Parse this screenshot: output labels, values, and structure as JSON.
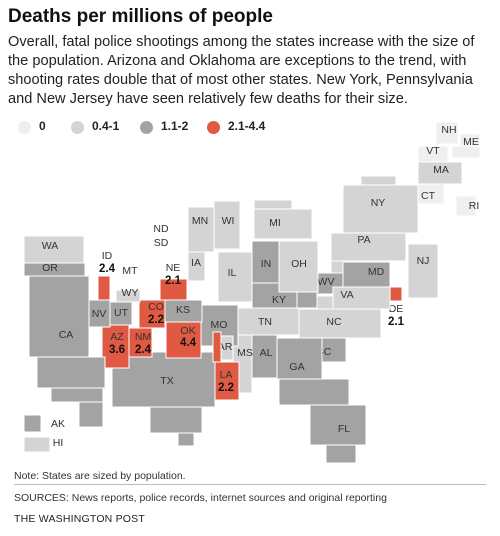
{
  "title": "Deaths per millions of people",
  "subtitle": "Overall, fatal police shootings among the states increase with the size of the population. Arizona and Oklahoma are exceptions to the trend, with shooting rates double that of most other states. New York, Pennsylvania and New Jersey have seen relatively few deaths for their size.",
  "colors": {
    "c0": "#efefef",
    "c1": "#d4d4d4",
    "c2": "#a3a3a3",
    "c3": "#e05a43"
  },
  "legend": [
    {
      "label": "0",
      "cls": "c0"
    },
    {
      "label": "0.4-1",
      "cls": "c1"
    },
    {
      "label": "1.1-2",
      "cls": "c2"
    },
    {
      "label": "2.1-4.4",
      "cls": "c3"
    }
  ],
  "states": [
    {
      "abbr": "ME",
      "cls": "c0"
    },
    {
      "abbr": "NH",
      "cls": "c0"
    },
    {
      "abbr": "VT",
      "cls": "c0"
    },
    {
      "abbr": "MA",
      "cls": "c1"
    },
    {
      "abbr": "CT",
      "cls": "c0"
    },
    {
      "abbr": "RI",
      "cls": "c0"
    },
    {
      "abbr": "NY",
      "cls": "c1"
    },
    {
      "abbr": "PA",
      "cls": "c1"
    },
    {
      "abbr": "NJ",
      "cls": "c1"
    },
    {
      "abbr": "DE",
      "cls": "c3",
      "value": "2.1"
    },
    {
      "abbr": "MD",
      "cls": "c2"
    },
    {
      "abbr": "WV",
      "cls": "c2"
    },
    {
      "abbr": "VA",
      "cls": "c1"
    },
    {
      "abbr": "NC",
      "cls": "c1"
    },
    {
      "abbr": "SC",
      "cls": "c2"
    },
    {
      "abbr": "GA",
      "cls": "c2"
    },
    {
      "abbr": "FL",
      "cls": "c2"
    },
    {
      "abbr": "AL",
      "cls": "c2"
    },
    {
      "abbr": "MS",
      "cls": "c1"
    },
    {
      "abbr": "TN",
      "cls": "c1"
    },
    {
      "abbr": "KY",
      "cls": "c2"
    },
    {
      "abbr": "OH",
      "cls": "c1"
    },
    {
      "abbr": "MI",
      "cls": "c1"
    },
    {
      "abbr": "IN",
      "cls": "c2"
    },
    {
      "abbr": "IL",
      "cls": "c1"
    },
    {
      "abbr": "WI",
      "cls": "c1"
    },
    {
      "abbr": "MN",
      "cls": "c1"
    },
    {
      "abbr": "IA",
      "cls": "c1"
    },
    {
      "abbr": "MO",
      "cls": "c2"
    },
    {
      "abbr": "AR",
      "cls": "c1"
    },
    {
      "abbr": "LA",
      "cls": "c3",
      "value": "2.2"
    },
    {
      "abbr": "TX",
      "cls": "c2"
    },
    {
      "abbr": "OK",
      "cls": "c3",
      "value": "4.4"
    },
    {
      "abbr": "KS",
      "cls": "c2"
    },
    {
      "abbr": "NE",
      "cls": "c3",
      "value": "2.1"
    },
    {
      "abbr": "SD",
      "cls": "c0"
    },
    {
      "abbr": "ND",
      "cls": "c0"
    },
    {
      "abbr": "CO",
      "cls": "c3",
      "value": "2.2"
    },
    {
      "abbr": "NM",
      "cls": "c3",
      "value": "2.4"
    },
    {
      "abbr": "AZ",
      "cls": "c3",
      "value": "3.6"
    },
    {
      "abbr": "UT",
      "cls": "c2"
    },
    {
      "abbr": "WY",
      "cls": "c1"
    },
    {
      "abbr": "MT",
      "cls": "c0"
    },
    {
      "abbr": "ID",
      "cls": "c3",
      "value": "2.4"
    },
    {
      "abbr": "NV",
      "cls": "c2"
    },
    {
      "abbr": "CA",
      "cls": "c2"
    },
    {
      "abbr": "OR",
      "cls": "c2"
    },
    {
      "abbr": "WA",
      "cls": "c1"
    },
    {
      "abbr": "AK",
      "cls": "c2"
    },
    {
      "abbr": "HI",
      "cls": "c1"
    }
  ],
  "note": "Note: States are sized by population.",
  "sources": "SOURCES: News reports, police records, internet sources and original reporting",
  "credit": "THE WASHINGTON POST"
}
